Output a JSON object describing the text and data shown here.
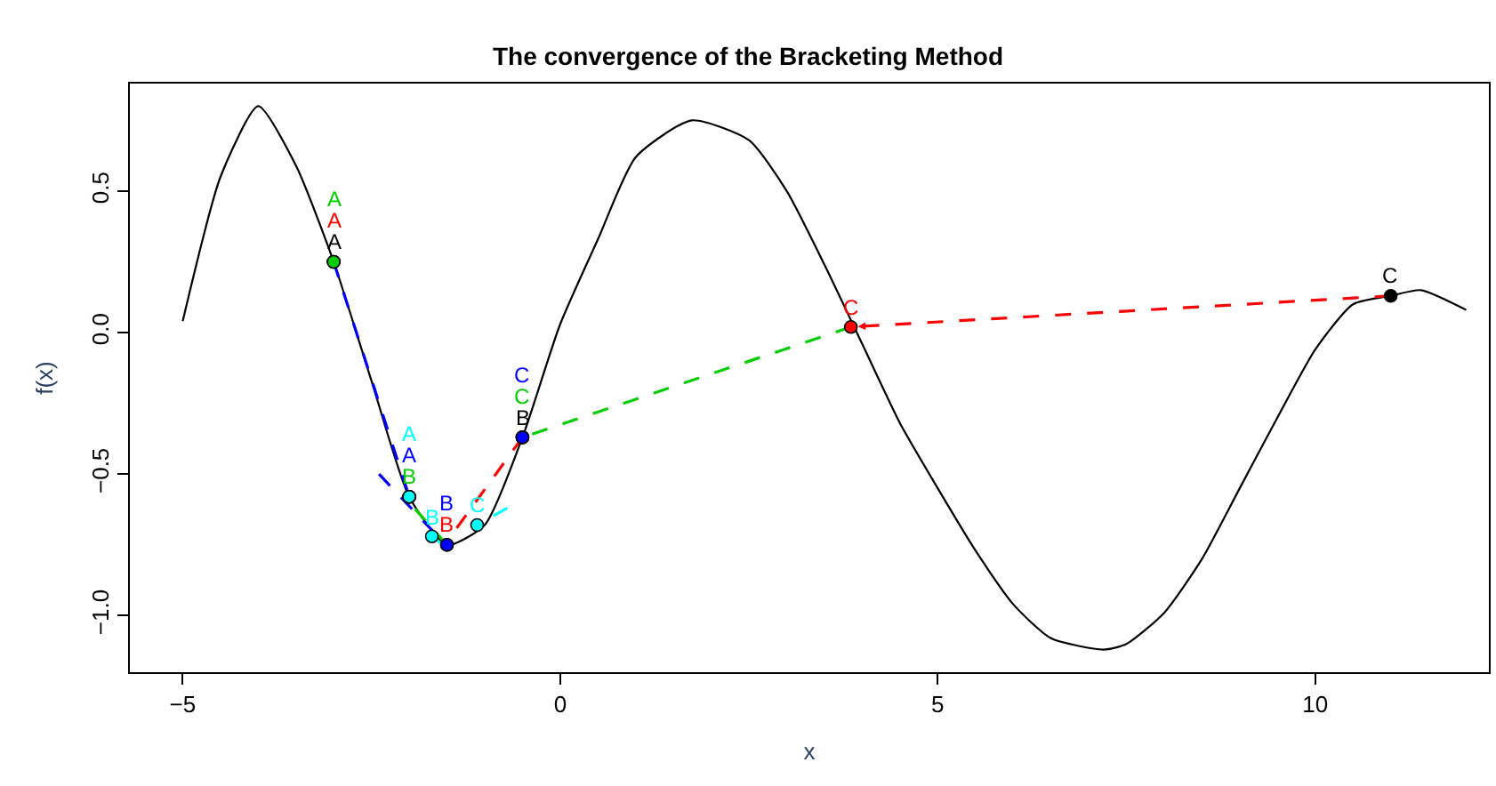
{
  "chart_data": {
    "type": "line",
    "title": "The convergence of the Bracketing Method",
    "xlabel": "x",
    "ylabel": "f(x)",
    "xlim": [
      -5.7,
      12.3
    ],
    "xticks": [
      -5,
      0,
      5,
      10
    ],
    "ylim": [
      -1.2,
      0.88
    ],
    "yticks": [
      {
        "value": -1.0,
        "label": "−1.0"
      },
      {
        "value": -0.5,
        "label": "−0.5"
      },
      {
        "value": 0.0,
        "label": "0.0"
      },
      {
        "value": 0.5,
        "label": "0.5"
      }
    ],
    "series": [
      {
        "type": "line",
        "color": "#000000",
        "line_style": "solid",
        "x": [
          -5,
          -4.5,
          -4,
          -3.5,
          -3,
          -2.5,
          -2,
          -1.5,
          -1,
          -0.5,
          0,
          0.5,
          1,
          1.74,
          2.5,
          3,
          3.5,
          4,
          4.5,
          5,
          5.5,
          6,
          6.5,
          7.2,
          7.5,
          8,
          8.5,
          9,
          9.5,
          10,
          10.5,
          11,
          11.4,
          12
        ],
        "values": [
          0.04,
          0.55,
          0.8,
          0.59,
          0.25,
          -0.17,
          -0.58,
          -0.75,
          -0.68,
          -0.37,
          0.03,
          0.33,
          0.62,
          0.75,
          0.68,
          0.5,
          0.24,
          -0.04,
          -0.32,
          -0.55,
          -0.77,
          -0.96,
          -1.08,
          -1.12,
          -1.1,
          -0.99,
          -0.8,
          -0.55,
          -0.3,
          -0.06,
          0.1,
          0.13,
          0.15,
          0.08
        ]
      },
      {
        "color": "#ff0000",
        "line_style": "dashed",
        "x": [
          11,
          3.85
        ],
        "values": [
          0.13,
          0.02
        ]
      },
      {
        "type": "line",
        "color": "#ff0000",
        "line_style": "dashed",
        "x": [
          -0.5,
          -1.45
        ],
        "values": [
          -0.37,
          -0.72
        ]
      },
      {
        "type": "line",
        "color": "#00cd00",
        "line_style": "dashed",
        "x": [
          3.85,
          -0.5
        ],
        "values": [
          0.02,
          -0.37
        ]
      },
      {
        "type": "line",
        "color": "#00cd00",
        "line_style": "dashed",
        "x": [
          -1.5,
          -2
        ],
        "values": [
          -0.75,
          -0.6
        ]
      },
      {
        "type": "line",
        "color": "#0000ff",
        "line_style": "dashed",
        "x": [
          -3,
          -2
        ],
        "values": [
          0.25,
          -0.58
        ]
      },
      {
        "type": "line",
        "color": "#0000ff",
        "line_style": "dashed",
        "x": [
          -2.4,
          -1.55
        ],
        "values": [
          -0.5,
          -0.74
        ]
      },
      {
        "type": "line",
        "color": "#00ffff",
        "line_style": "dashed",
        "x": [
          -0.7,
          -1.1
        ],
        "values": [
          -0.62,
          -0.68
        ]
      },
      {
        "type": "line",
        "color": "#00ffff",
        "line_style": "dashed",
        "x": [
          -1.5,
          -1.7
        ],
        "values": [
          -0.76,
          -0.72
        ]
      },
      {
        "type": "scatter",
        "color": "#000000",
        "marker": "circle",
        "x": [
          -3,
          -0.5,
          11
        ],
        "values": [
          0.25,
          -0.37,
          0.13
        ],
        "value_labels": [
          "A",
          "B",
          "C"
        ]
      },
      {
        "type": "scatter",
        "color": "#ff0000",
        "marker": "circle",
        "x": [
          -3,
          -1.5,
          3.85
        ],
        "values": [
          0.25,
          -0.75,
          0.02
        ],
        "value_labels": [
          "A",
          "B",
          "C"
        ]
      },
      {
        "type": "scatter",
        "color": "#00cd00",
        "marker": "circle",
        "x": [
          -3,
          -2,
          -0.5
        ],
        "values": [
          0.25,
          -0.58,
          -0.37
        ],
        "value_labels": [
          "A",
          "B",
          "C"
        ]
      },
      {
        "type": "scatter",
        "color": "#0000ff",
        "marker": "circle",
        "x": [
          -2,
          -1.5,
          -0.5
        ],
        "values": [
          -0.58,
          -0.75,
          -0.37
        ],
        "value_labels": [
          "A",
          "B",
          "C"
        ]
      },
      {
        "type": "scatter",
        "color": "#00ffff",
        "marker": "circle",
        "x": [
          -2,
          -1.7,
          -1.1
        ],
        "values": [
          -0.58,
          -0.72,
          -0.68
        ],
        "value_labels": [
          "A",
          "B",
          "C"
        ]
      }
    ]
  }
}
